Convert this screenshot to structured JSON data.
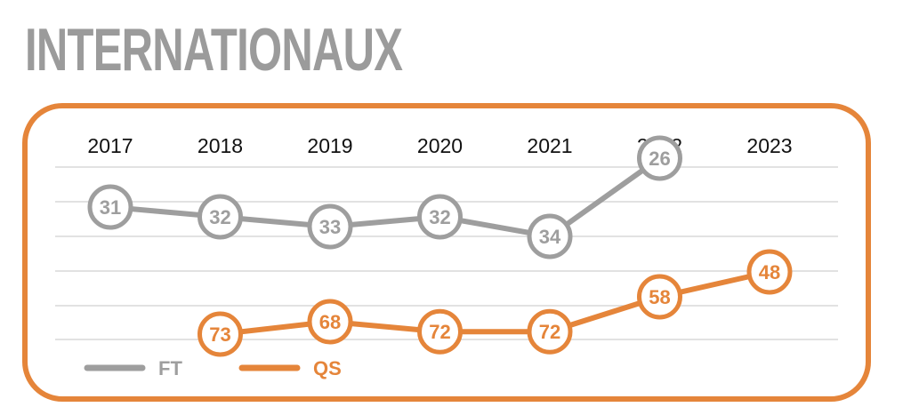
{
  "title": "INTERNATIONAUX",
  "colors": {
    "ft": "#9e9e9e",
    "qs": "#e5853a",
    "frame": "#e5853a",
    "grid": "#d9d9d9",
    "title": "#9b9b9b"
  },
  "chart_data": {
    "type": "line",
    "title": "INTERNATIONAUX",
    "categories": [
      "2017",
      "2018",
      "2019",
      "2020",
      "2021",
      "2022",
      "2023"
    ],
    "y_reversed": true,
    "legend_position": "bottom-left",
    "grid": true,
    "series": [
      {
        "name": "FT",
        "color": "#9e9e9e",
        "values": [
          31,
          32,
          33,
          32,
          34,
          26,
          null
        ]
      },
      {
        "name": "QS",
        "color": "#e5853a",
        "values": [
          null,
          73,
          68,
          72,
          72,
          58,
          48
        ]
      }
    ]
  }
}
